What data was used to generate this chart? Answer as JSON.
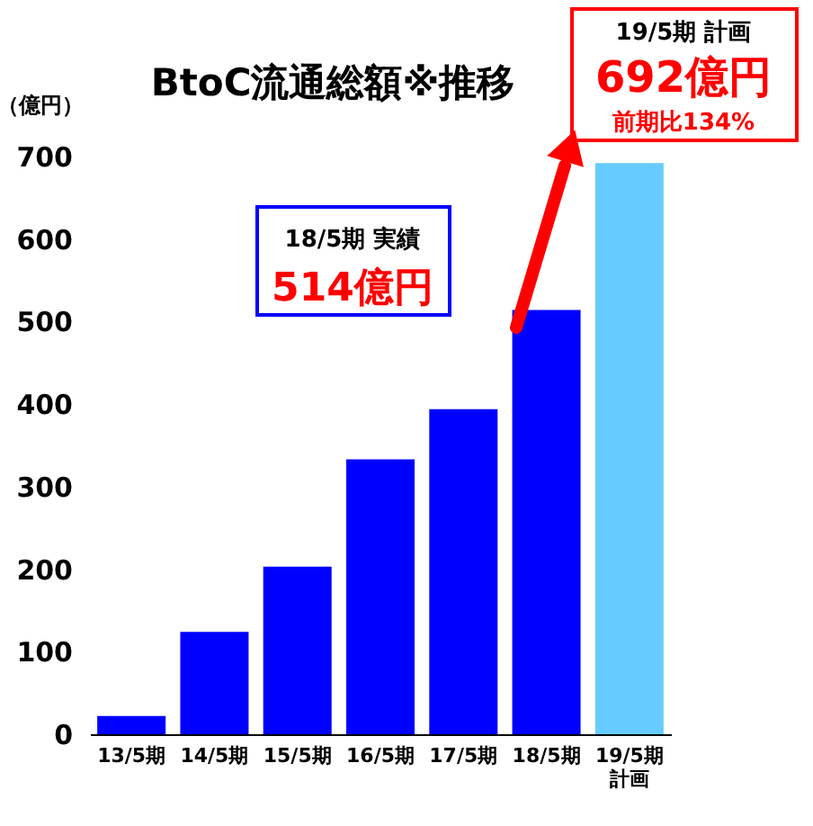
{
  "chart_data": {
    "type": "bar",
    "title": "BtoC流通総額※推移",
    "ylabel": "（億円）",
    "categories": [
      "13/5期",
      "14/5期",
      "15/5期",
      "16/5期",
      "17/5期",
      "18/5期",
      "19/5期計画"
    ],
    "values": [
      22,
      124,
      203,
      333,
      394,
      514,
      692
    ],
    "colors": [
      "#0000ff",
      "#0000ff",
      "#0000ff",
      "#0000ff",
      "#0000ff",
      "#0000ff",
      "#66ccff"
    ],
    "ylim": [
      0,
      700
    ],
    "yticks": [
      0,
      100,
      200,
      300,
      400,
      500,
      600,
      700
    ],
    "grid": false,
    "annotations": [
      "18/5期 実績",
      "514億円",
      "19/5期 計画",
      "692億円",
      "前期比134%"
    ]
  }
}
